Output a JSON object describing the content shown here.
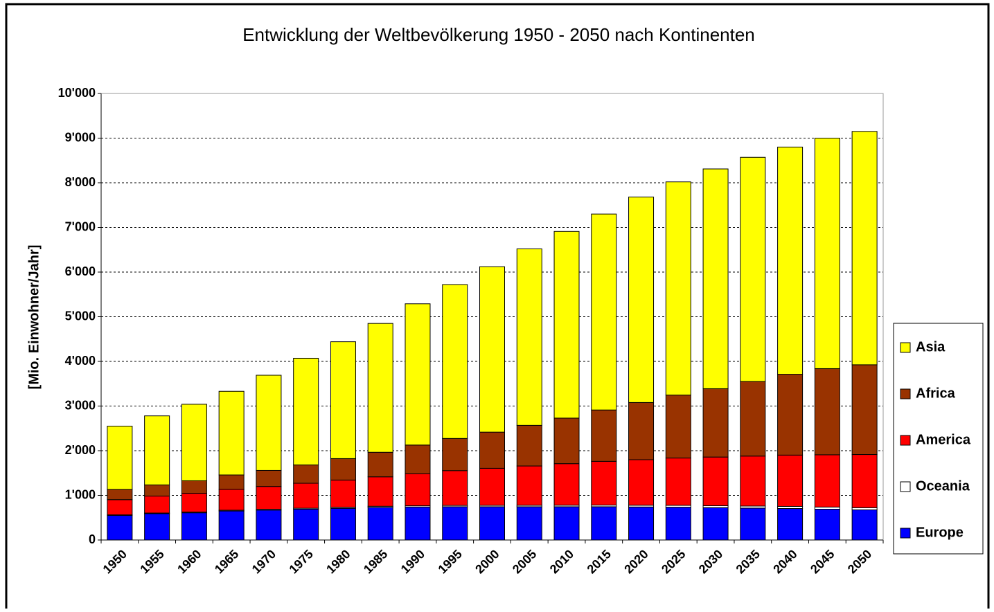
{
  "chart_data": {
    "type": "stacked_bar",
    "title": "Entwicklung der Weltbevölkerung 1950 - 2050 nach Kontinenten",
    "y_label": "[Mio. Einwohner/Jahr]",
    "categories": [
      "1950",
      "1955",
      "1960",
      "1965",
      "1970",
      "1975",
      "1980",
      "1985",
      "1990",
      "1995",
      "2000",
      "2005",
      "2010",
      "2015",
      "2020",
      "2025",
      "2030",
      "2035",
      "2040",
      "2045",
      "2050"
    ],
    "series": [
      {
        "name": "Europe",
        "color": "#0000ff",
        "values": [
          550,
          590,
          610,
          650,
          670,
          690,
          710,
          730,
          740,
          745,
          745,
          745,
          745,
          745,
          740,
          735,
          725,
          715,
          705,
          690,
          675
        ]
      },
      {
        "name": "Oceania",
        "color": "#ffffff",
        "values": [
          13,
          14,
          16,
          17,
          19,
          21,
          23,
          25,
          27,
          29,
          31,
          33,
          35,
          37,
          39,
          41,
          43,
          45,
          47,
          48,
          49
        ]
      },
      {
        "name": "America",
        "color": "#ff0000",
        "values": [
          340,
          380,
          420,
          470,
          510,
          560,
          610,
          660,
          720,
          780,
          830,
          880,
          930,
          980,
          1020,
          1060,
          1090,
          1120,
          1150,
          1170,
          1190
        ]
      },
      {
        "name": "Africa",
        "color": "#993300",
        "values": [
          230,
          250,
          280,
          320,
          360,
          410,
          480,
          550,
          640,
          720,
          810,
          910,
          1020,
          1150,
          1280,
          1410,
          1530,
          1670,
          1810,
          1930,
          2010
        ]
      },
      {
        "name": "Asia",
        "color": "#ffff00",
        "values": [
          1417,
          1546,
          1714,
          1873,
          2131,
          2389,
          2617,
          2885,
          3163,
          3446,
          3704,
          3952,
          4180,
          4388,
          4601,
          4774,
          4922,
          5020,
          5088,
          5162,
          5226
        ]
      }
    ],
    "ylim": [
      0,
      10000
    ],
    "yticks": [
      0,
      {
        "value": 1000,
        "label": "1'000"
      },
      {
        "value": 2000,
        "label": "2'000"
      },
      {
        "value": 3000,
        "label": "3'000"
      },
      {
        "value": 4000,
        "label": "4'000"
      },
      {
        "value": 5000,
        "label": "5'000"
      },
      {
        "value": 6000,
        "label": "6'000"
      },
      {
        "value": 7000,
        "label": "7'000"
      },
      {
        "value": 8000,
        "label": "8'000"
      },
      {
        "value": 9000,
        "label": "9'000"
      },
      {
        "value": 10000,
        "label": "10'000"
      }
    ],
    "grid": true,
    "legend": "right"
  }
}
